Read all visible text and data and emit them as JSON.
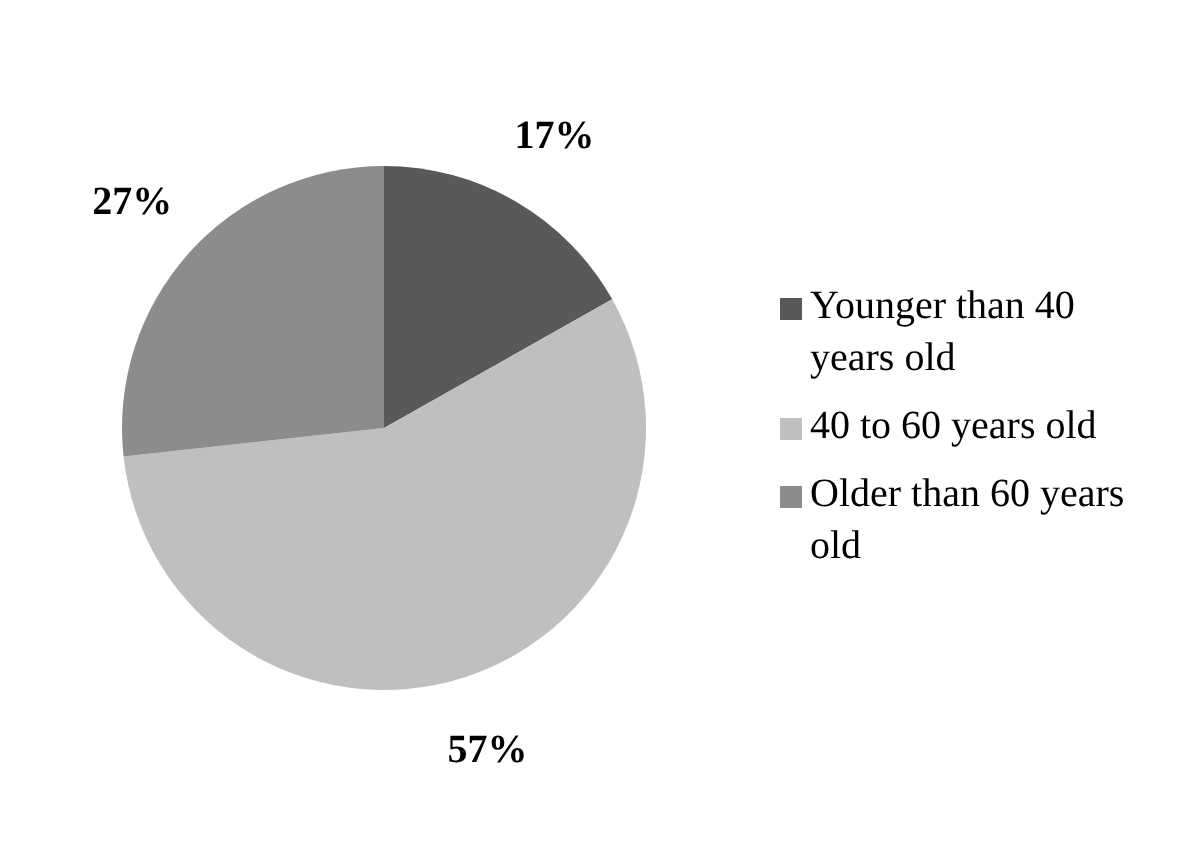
{
  "chart_data": {
    "type": "pie",
    "categories": [
      "Younger than 40 years old",
      "40 to 60 years old",
      "Older than 60 years old"
    ],
    "values": [
      17,
      57,
      27
    ],
    "value_labels": [
      "17%",
      "57%",
      "27%"
    ],
    "colors": [
      "#595959",
      "#bfbfbf",
      "#8c8c8c"
    ],
    "legend": "right"
  }
}
